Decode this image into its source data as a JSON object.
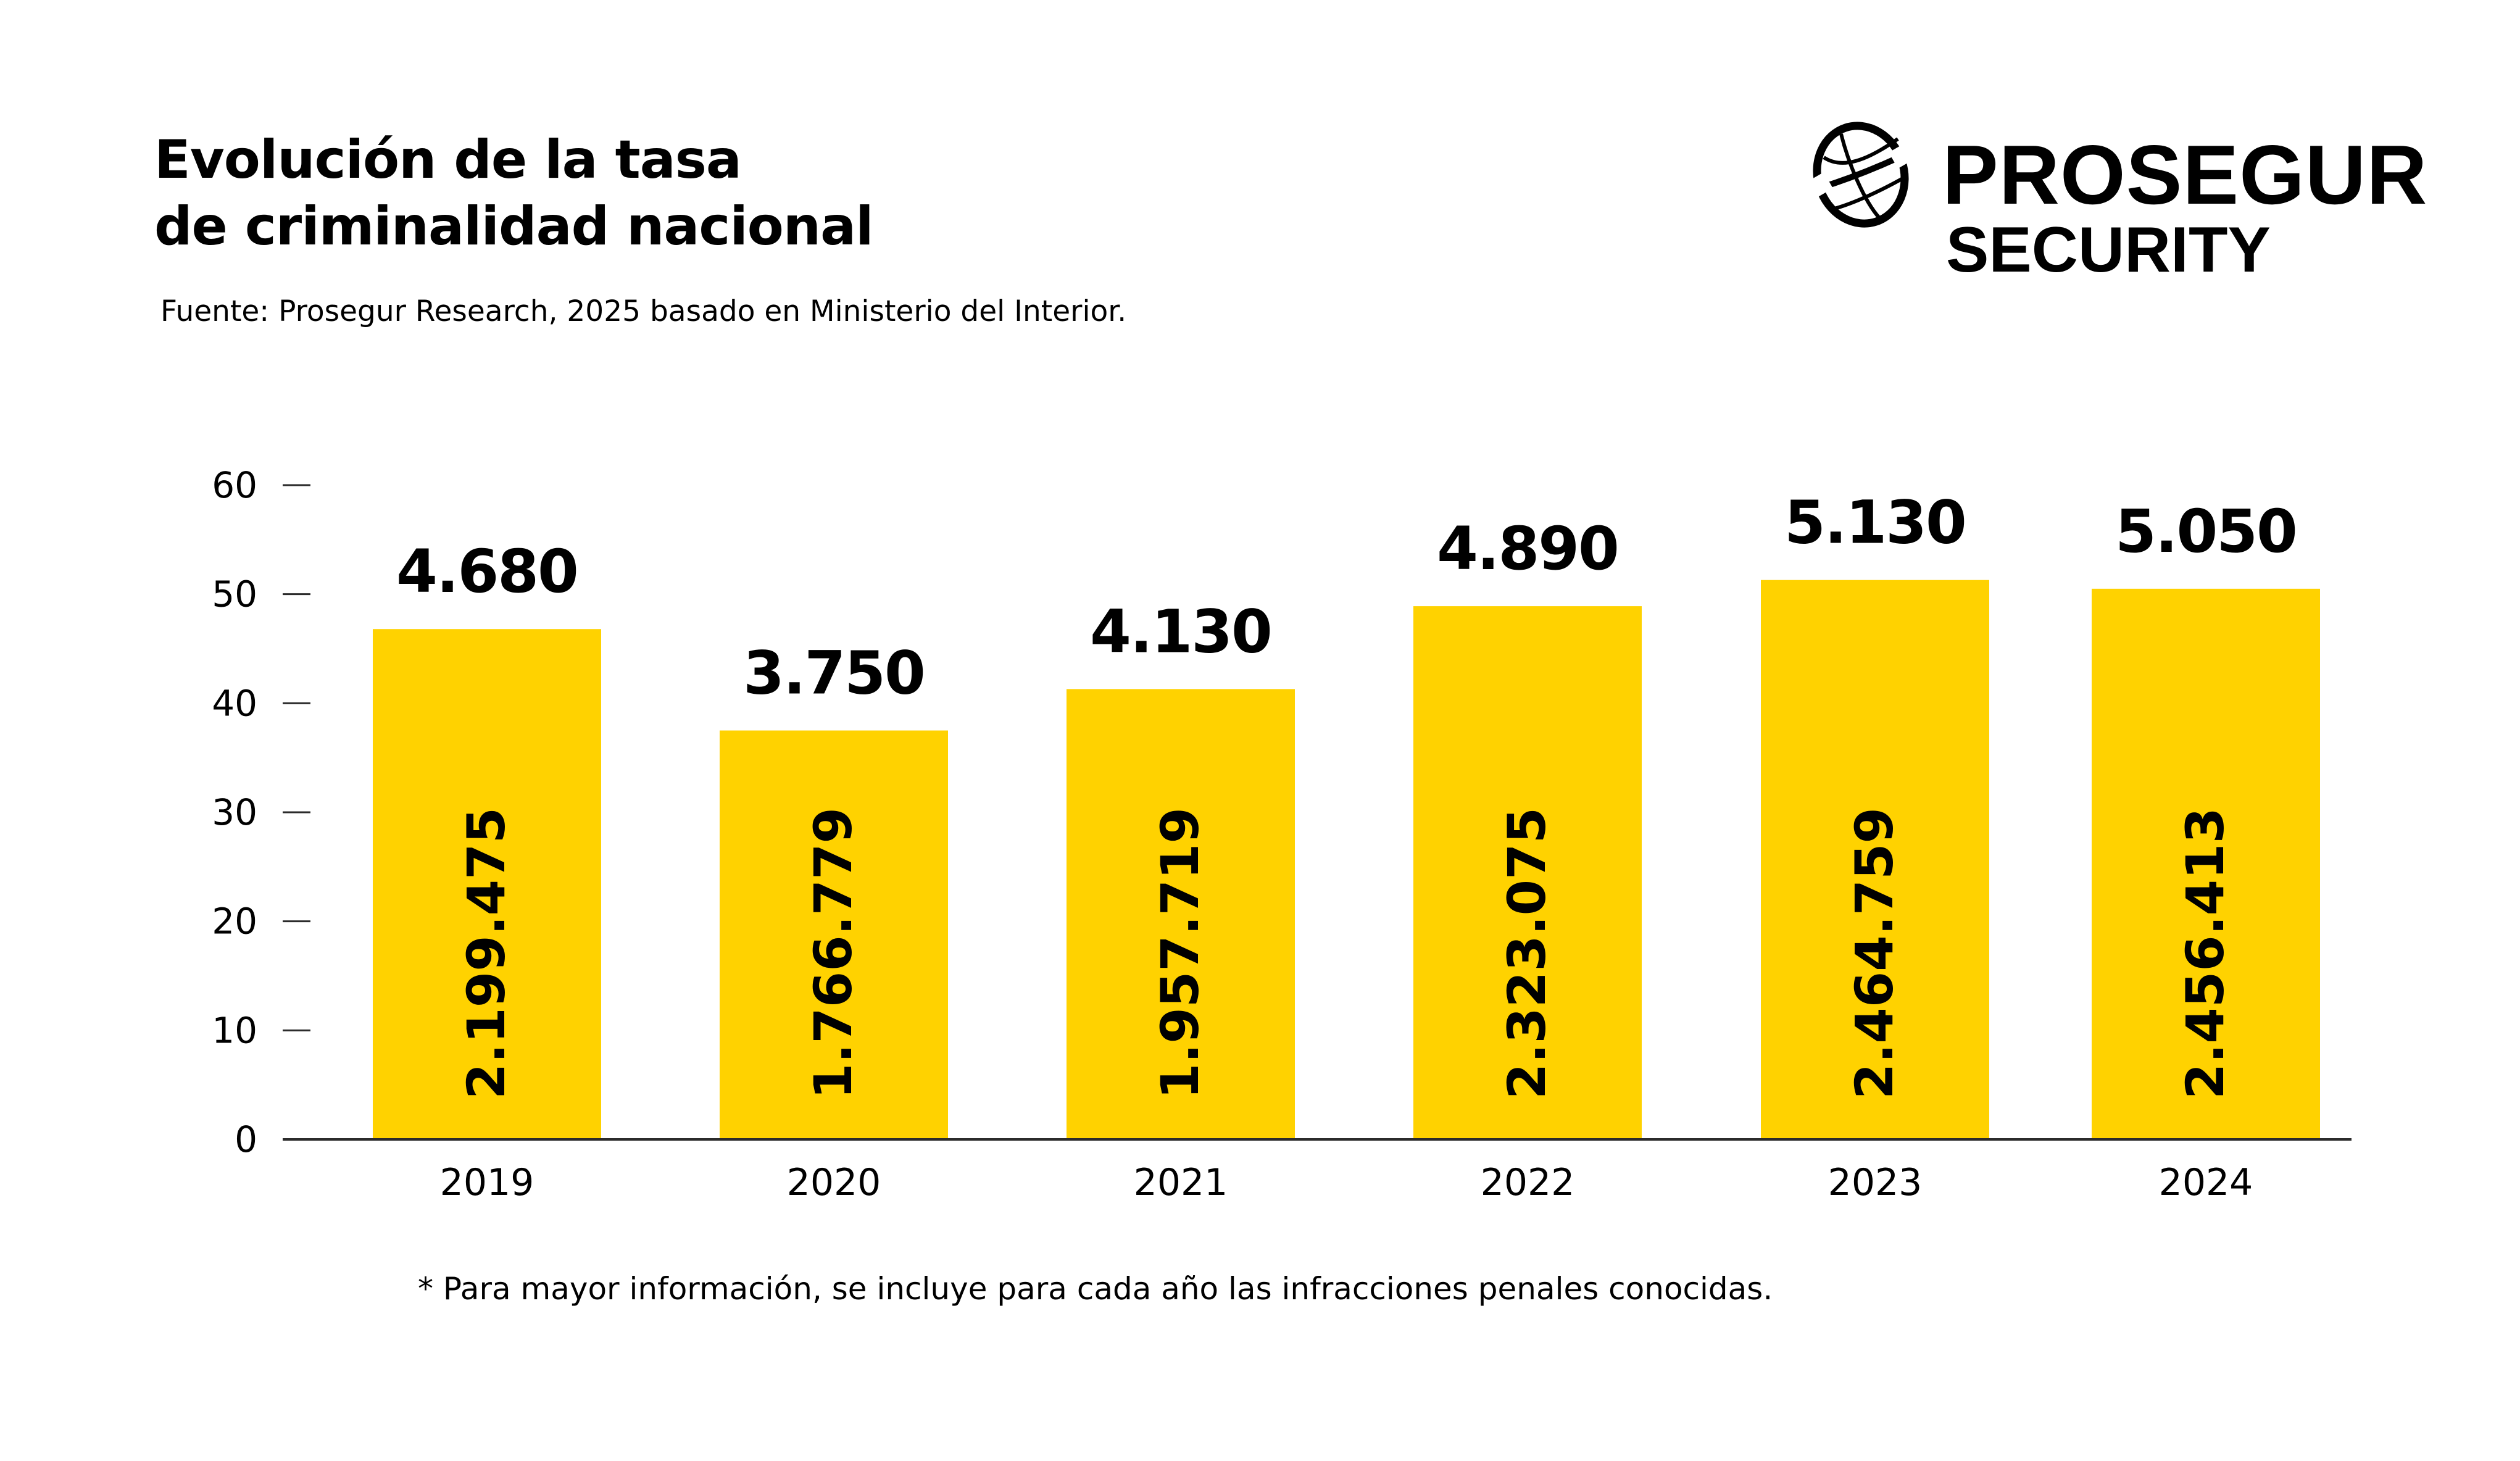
{
  "header": {
    "title_lines": [
      "Evolución de la tasa",
      "de criminalidad nacional"
    ],
    "source": "Fuente: Prosegur Research, 2025 basado en Ministerio del Interior."
  },
  "logo": {
    "icon": "globe-icon",
    "name": "PROSEGUR",
    "subtitle": "SECURITY"
  },
  "footnote": "* Para mayor información, se incluye para cada año las infracciones penales conocidas.",
  "colors": {
    "bar": "#FFD200",
    "text": "#000000",
    "axis": "#2b2b2b"
  },
  "chart_data": {
    "type": "bar",
    "title": "Evolución de la tasa de criminalidad nacional",
    "xlabel": "",
    "ylabel": "",
    "categories": [
      "2019",
      "2020",
      "2021",
      "2022",
      "2023",
      "2024"
    ],
    "values": [
      46.8,
      37.5,
      41.3,
      48.9,
      51.3,
      50.5
    ],
    "value_labels": [
      "4.680",
      "3.750",
      "4.130",
      "4.890",
      "5.130",
      "5.050"
    ],
    "inner_labels": [
      "2.199.475",
      "1.766.779",
      "1.957.719",
      "2.323.075",
      "2.464.759",
      "2.456.413"
    ],
    "inner_labels_meaning": "infracciones penales conocidas",
    "ylim": [
      0,
      60
    ],
    "yticks": [
      0,
      10,
      20,
      30,
      40,
      50,
      60
    ],
    "grid": false,
    "legend": "none"
  }
}
